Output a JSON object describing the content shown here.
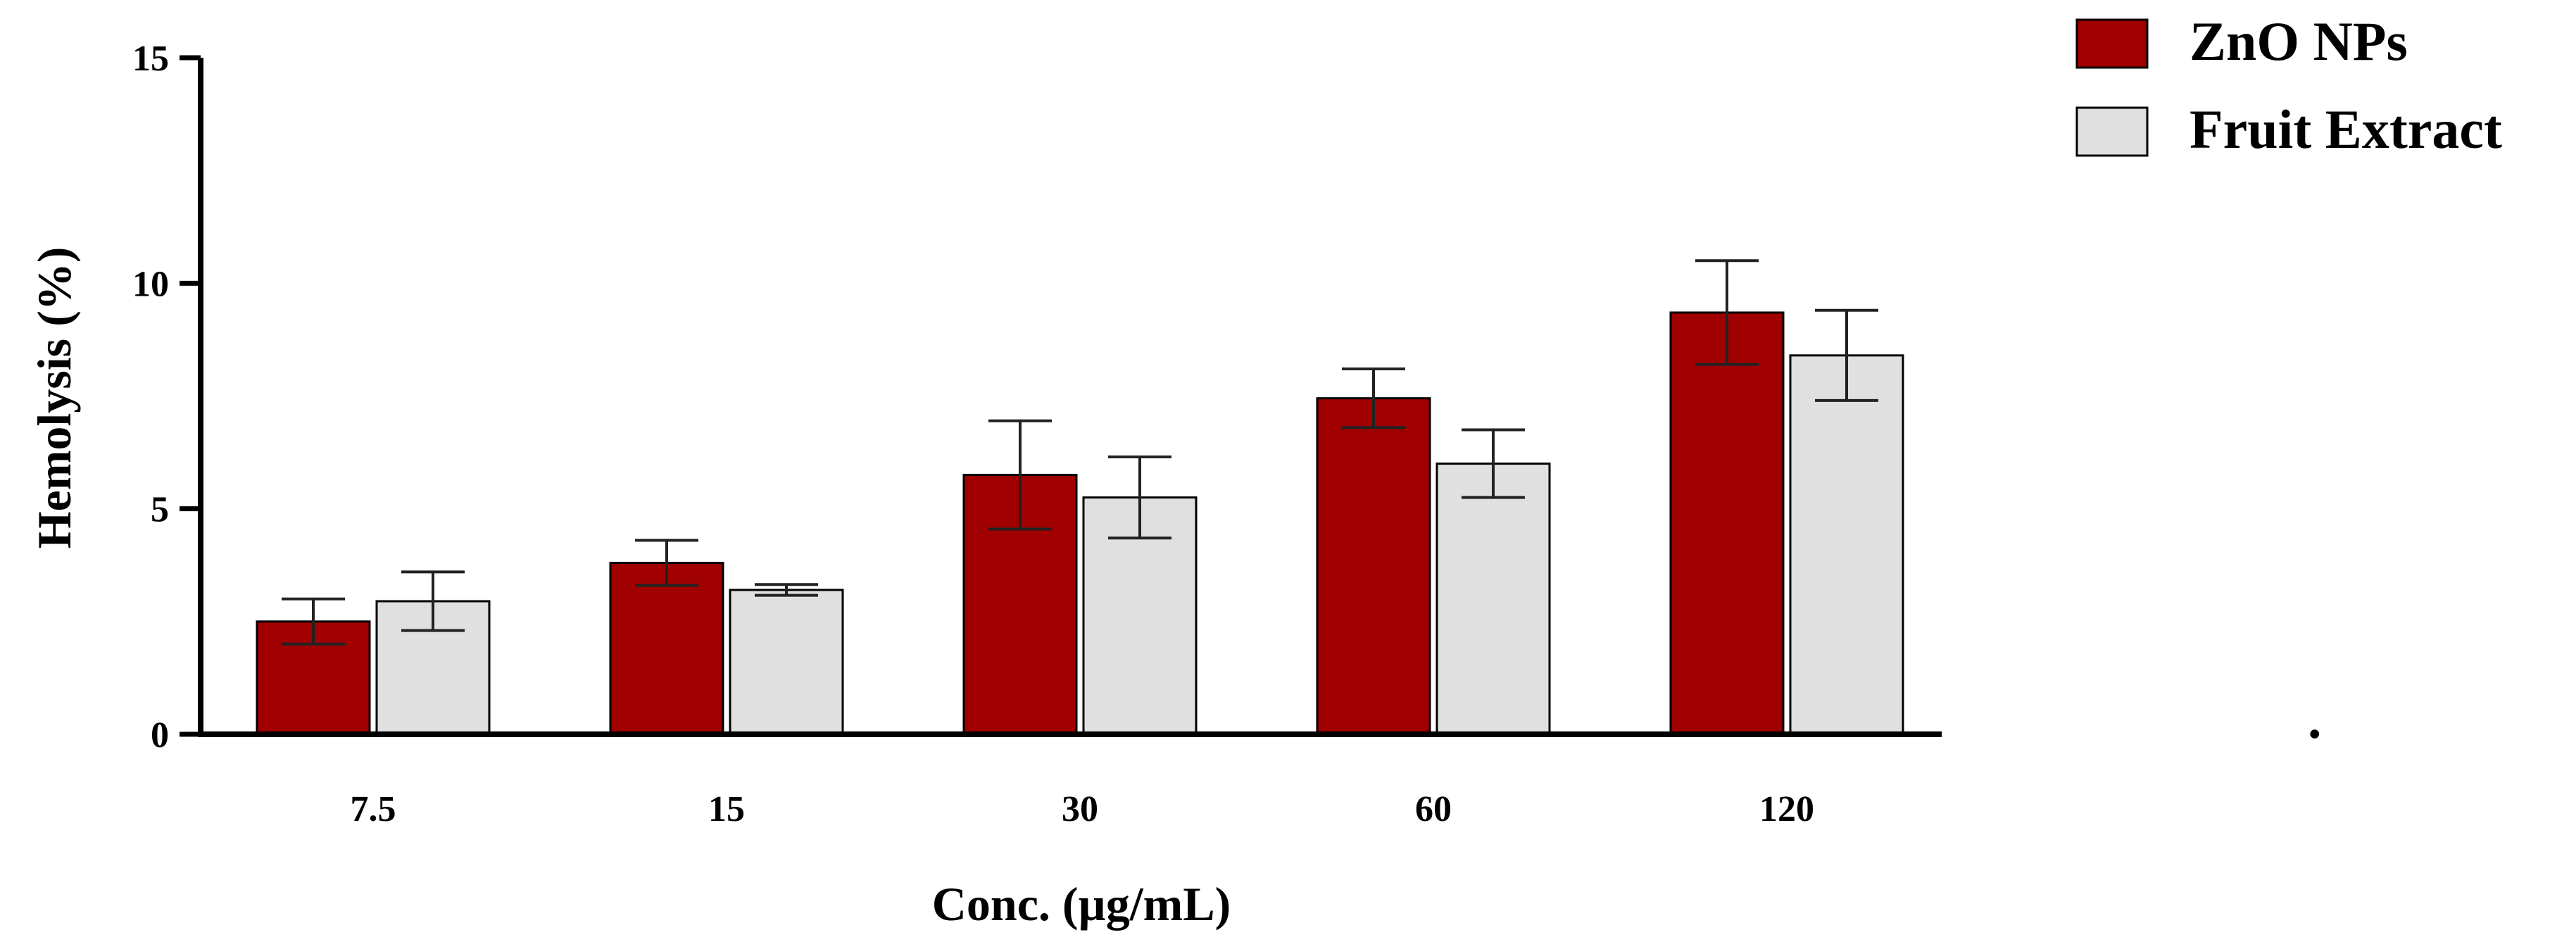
{
  "chart_data": {
    "type": "bar",
    "title": "",
    "xlabel": "Conc. (µg/mL)",
    "ylabel": "Hemolysis (%)",
    "ylim": [
      0,
      15
    ],
    "yticks": [
      "0",
      "5",
      "10",
      "15"
    ],
    "categories": [
      "7.5",
      "15",
      "30",
      "60",
      "120"
    ],
    "series": [
      {
        "name": "ZnO NPs",
        "color": "#a00000",
        "values": [
          2.5,
          3.8,
          5.75,
          7.45,
          9.35
        ],
        "errors": [
          0.5,
          0.5,
          1.2,
          0.65,
          1.15
        ]
      },
      {
        "name": "Fruit Extract",
        "color": "#e0e0e0",
        "values": [
          2.95,
          3.2,
          5.25,
          6.0,
          8.4
        ],
        "errors": [
          0.65,
          0.12,
          0.9,
          0.75,
          1.0
        ]
      }
    ],
    "legend_position": "top-right"
  },
  "annotation": "."
}
